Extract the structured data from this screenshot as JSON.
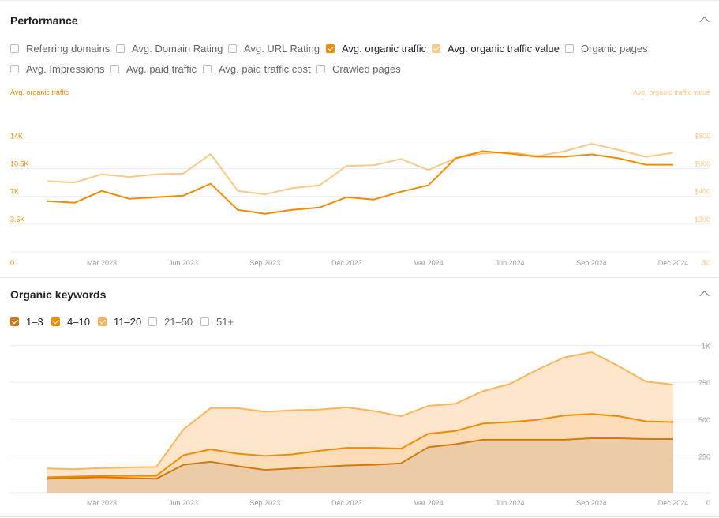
{
  "performance": {
    "title": "Performance",
    "options": [
      {
        "label": "Referring domains",
        "checked": false
      },
      {
        "label": "Avg. Domain Rating",
        "checked": false
      },
      {
        "label": "Avg. URL Rating",
        "checked": false
      },
      {
        "label": "Avg. organic traffic",
        "checked": true,
        "color": "#f08c00"
      },
      {
        "label": "Avg. organic traffic value",
        "checked": true,
        "color": "#fbc887"
      },
      {
        "label": "Organic pages",
        "checked": false
      },
      {
        "label": "Avg. Impressions",
        "checked": false
      },
      {
        "label": "Avg. paid traffic",
        "checked": false
      },
      {
        "label": "Avg. paid traffic cost",
        "checked": false
      },
      {
        "label": "Crawled pages",
        "checked": false
      }
    ]
  },
  "keywords": {
    "title": "Organic keywords",
    "options": [
      {
        "label": "1–3",
        "checked": true,
        "color": "#c97a1c"
      },
      {
        "label": "4–10",
        "checked": true,
        "color": "#f08c00"
      },
      {
        "label": "11–20",
        "checked": true,
        "color": "#fbb55c"
      },
      {
        "label": "21–50",
        "checked": false
      },
      {
        "label": "51+",
        "checked": false
      }
    ]
  },
  "chart_data": [
    {
      "type": "line",
      "ylabel_left": "Avg. organic traffic",
      "ylabel_right": "Avg. organic traffic value",
      "left_ticks": [
        "0",
        "3.5K",
        "7K",
        "10.5K",
        "14K"
      ],
      "right_ticks": [
        "$0",
        "$200",
        "$400",
        "$600",
        "$800"
      ],
      "x_ticks": [
        "Mar 2023",
        "Jun 2023",
        "Sep 2023",
        "Dec 2023",
        "Mar 2024",
        "Jun 2024",
        "Sep 2024",
        "Dec 2024"
      ],
      "ylim_left": [
        0,
        17500
      ],
      "ylim_right": [
        0,
        1000
      ],
      "x": [
        "2023-01-01",
        "2023-02-01",
        "2023-03-01",
        "2023-04-01",
        "2023-05-01",
        "2023-06-01",
        "2023-07-01",
        "2023-08-01",
        "2023-09-01",
        "2023-10-01",
        "2023-11-01",
        "2023-12-01",
        "2024-01-01",
        "2024-02-01",
        "2024-03-01",
        "2024-04-01",
        "2024-05-01",
        "2024-06-01",
        "2024-07-01",
        "2024-08-01",
        "2024-09-01",
        "2024-10-01",
        "2024-11-01",
        "2024-12-01"
      ],
      "series": [
        {
          "name": "Avg. organic traffic",
          "axis": "left",
          "color": "#f08c00",
          "values": [
            6400,
            6200,
            7700,
            6700,
            6900,
            7100,
            8600,
            5300,
            4800,
            5300,
            5600,
            6900,
            6600,
            7600,
            8400,
            11800,
            12700,
            12400,
            12000,
            12000,
            12300,
            11800,
            11000,
            11000
          ]
        },
        {
          "name": "Avg. organic traffic value",
          "axis": "right",
          "color": "#fbc887",
          "values": [
            510,
            500,
            560,
            540,
            560,
            565,
            705,
            440,
            415,
            460,
            480,
            620,
            625,
            670,
            590,
            675,
            710,
            720,
            690,
            725,
            780,
            735,
            685,
            715
          ]
        }
      ]
    },
    {
      "type": "area",
      "y_ticks": [
        "0",
        "250",
        "500",
        "750",
        "1K"
      ],
      "x_ticks": [
        "Mar 2023",
        "Jun 2023",
        "Sep 2023",
        "Dec 2023",
        "Mar 2024",
        "Jun 2024",
        "Sep 2024",
        "Dec 2024"
      ],
      "ylim": [
        0,
        1000
      ],
      "x": [
        "2023-01-01",
        "2023-02-01",
        "2023-03-01",
        "2023-04-01",
        "2023-05-01",
        "2023-06-01",
        "2023-07-01",
        "2023-08-01",
        "2023-09-01",
        "2023-10-01",
        "2023-11-01",
        "2023-12-01",
        "2024-01-01",
        "2024-02-01",
        "2024-03-01",
        "2024-04-01",
        "2024-05-01",
        "2024-06-01",
        "2024-07-01",
        "2024-08-01",
        "2024-09-01",
        "2024-10-01",
        "2024-11-01",
        "2024-12-01"
      ],
      "series": [
        {
          "name": "1–3",
          "color": "#c97a1c",
          "values": [
            95,
            100,
            105,
            100,
            95,
            190,
            210,
            180,
            155,
            165,
            175,
            185,
            190,
            200,
            310,
            330,
            360,
            360,
            360,
            360,
            370,
            370,
            365,
            365
          ]
        },
        {
          "name": "4–10",
          "color": "#f08c00",
          "values": [
            105,
            110,
            115,
            115,
            115,
            255,
            295,
            265,
            250,
            260,
            285,
            305,
            305,
            300,
            400,
            420,
            470,
            480,
            495,
            525,
            535,
            520,
            485,
            480
          ]
        },
        {
          "name": "11–20",
          "color": "#fbb55c",
          "values": [
            165,
            160,
            168,
            172,
            175,
            430,
            575,
            575,
            550,
            560,
            565,
            580,
            555,
            520,
            590,
            605,
            690,
            740,
            835,
            920,
            955,
            860,
            755,
            735
          ]
        }
      ]
    }
  ]
}
